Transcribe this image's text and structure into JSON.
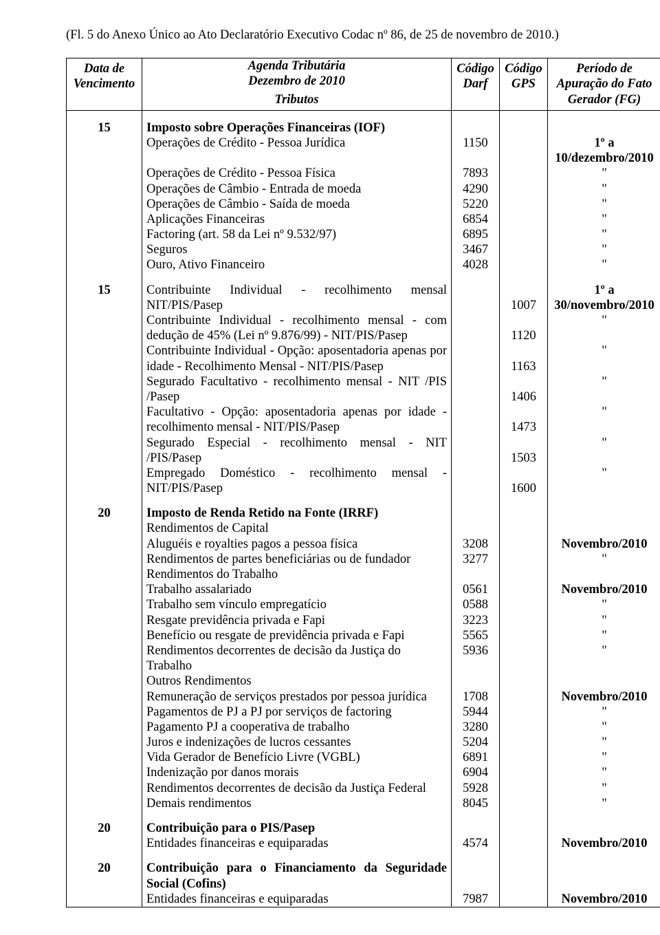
{
  "fl_text": "(Fl. 5 do Anexo Único ao Ato Declaratório Executivo Codac nº 86, de 25 de novembro de 2010.)",
  "agenda": {
    "title_line1": "Agenda Tributária",
    "title_line2": "Dezembro de 2010"
  },
  "headers": {
    "data": "Data de Vencimento",
    "tributos": "Tributos",
    "darf": "Código Darf",
    "gps": "Código GPS",
    "periodo": "Período de Apuração do Fato Gerador (FG)"
  },
  "s1": {
    "day": "15",
    "heading": "Imposto sobre Operações Financeiras (IOF)",
    "rows": [
      {
        "desc": "Operações de Crédito - Pessoa Jurídica",
        "darf": "1150",
        "period": "1º a 10/dezembro/2010"
      },
      {
        "desc": "Operações de Crédito - Pessoa Física",
        "darf": "7893",
        "period": "\""
      },
      {
        "desc": "Operações de Câmbio - Entrada de moeda",
        "darf": "4290",
        "period": "\""
      },
      {
        "desc": "Operações de Câmbio - Saída de moeda",
        "darf": "5220",
        "period": "\""
      },
      {
        "desc": "Aplicações Financeiras",
        "darf": "6854",
        "period": "\""
      },
      {
        "desc": "Factoring (art. 58 da Lei nº 9.532/97)",
        "darf": "6895",
        "period": "\""
      },
      {
        "desc": "Seguros",
        "darf": "3467",
        "period": "\""
      },
      {
        "desc": "Ouro, Ativo Financeiro",
        "darf": "4028",
        "period": "\""
      }
    ]
  },
  "s2": {
    "day": "15",
    "rows": [
      {
        "desc": "Contribuinte Individual - recolhimento mensal NIT/PIS/Pasep",
        "gps": "1007",
        "period": "1º a 30/novembro/2010",
        "period_bold": true
      },
      {
        "desc": "Contribuinte Individual - recolhimento mensal - com dedução de 45% (Lei nº 9.876/99) - NIT/PIS/Pasep",
        "gps": "1120",
        "period": "\""
      },
      {
        "desc": "Contribuinte Individual - Opção: aposentadoria apenas por idade - Recolhimento Mensal - NIT/PIS/Pasep",
        "gps": "1163",
        "period": "\""
      },
      {
        "desc": "Segurado Facultativo - recolhimento mensal - NIT /PIS /Pasep",
        "gps": "1406",
        "period": "\""
      },
      {
        "desc": "Facultativo - Opção: aposentadoria apenas por idade - recolhimento mensal - NIT/PIS/Pasep",
        "gps": "1473",
        "period": "\""
      },
      {
        "desc": "Segurado Especial - recolhimento mensal - NIT /PIS/Pasep",
        "gps": "1503",
        "period": "\""
      },
      {
        "desc": "Empregado Doméstico - recolhimento mensal - NIT/PIS/Pasep",
        "gps": "1600",
        "period": "\""
      }
    ]
  },
  "s3": {
    "day": "20",
    "heading": "Imposto de Renda Retido na Fonte (IRRF)",
    "groups": [
      {
        "sub": "Rendimentos de Capital",
        "rows": [
          {
            "desc": "Aluguéis e royalties pagos a pessoa física",
            "darf": "3208",
            "period": "Novembro/2010",
            "period_bold": true
          },
          {
            "desc": "Rendimentos de partes beneficiárias ou de fundador",
            "darf": "3277",
            "period": "\""
          }
        ]
      },
      {
        "sub": "Rendimentos do Trabalho",
        "rows": [
          {
            "desc": "Trabalho assalariado",
            "darf": "0561",
            "period": "Novembro/2010",
            "period_bold": true
          },
          {
            "desc": "Trabalho sem vínculo empregatício",
            "darf": "0588",
            "period": "\""
          },
          {
            "desc": "Resgate previdência privada e Fapi",
            "darf": "3223",
            "period": "\""
          },
          {
            "desc": "Benefício ou resgate de previdência privada e Fapi",
            "darf": "5565",
            "period": "\""
          },
          {
            "desc": "Rendimentos decorrentes de decisão da Justiça do Trabalho",
            "darf": "5936",
            "period": "\""
          }
        ]
      },
      {
        "sub": "Outros Rendimentos",
        "rows": [
          {
            "desc": "Remuneração de serviços prestados por pessoa jurídica",
            "darf": "1708",
            "period": "Novembro/2010",
            "period_bold": true
          },
          {
            "desc": "Pagamentos de PJ a PJ por serviços de factoring",
            "darf": "5944",
            "period": "\""
          },
          {
            "desc": "Pagamento PJ a cooperativa de trabalho",
            "darf": "3280",
            "period": "\""
          },
          {
            "desc": "Juros e indenizações de lucros cessantes",
            "darf": "5204",
            "period": "\""
          },
          {
            "desc": "Vida Gerador de Benefício Livre (VGBL)",
            "darf": "6891",
            "period": "\""
          },
          {
            "desc": "Indenização por danos morais",
            "darf": "6904",
            "period": "\""
          },
          {
            "desc": "Rendimentos decorrentes de decisão da Justiça Federal",
            "darf": "5928",
            "period": "\""
          },
          {
            "desc": "Demais rendimentos",
            "darf": "8045",
            "period": "\""
          }
        ]
      }
    ]
  },
  "s4": {
    "day": "20",
    "heading": "Contribuição para o PIS/Pasep",
    "rows": [
      {
        "desc": "Entidades financeiras e equiparadas",
        "darf": "4574",
        "period": "Novembro/2010",
        "period_bold": true
      }
    ]
  },
  "s5": {
    "day": "20",
    "heading": "Contribuição para o Financiamento da Seguridade Social (Cofins)",
    "rows": [
      {
        "desc": "Entidades financeiras e equiparadas",
        "darf": "7987",
        "period": "Novembro/2010",
        "period_bold": true
      }
    ]
  }
}
